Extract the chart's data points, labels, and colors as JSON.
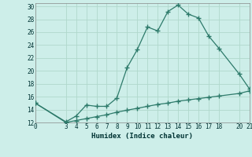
{
  "xlabel": "Humidex (Indice chaleur)",
  "background_color": "#cdeee9",
  "grid_color": "#b0d8cc",
  "line_color": "#2d7a6a",
  "xlim": [
    0,
    21
  ],
  "ylim": [
    12,
    30.5
  ],
  "yticks": [
    12,
    14,
    16,
    18,
    20,
    22,
    24,
    26,
    28,
    30
  ],
  "xticks": [
    0,
    3,
    4,
    5,
    6,
    7,
    8,
    9,
    10,
    11,
    12,
    13,
    14,
    15,
    16,
    17,
    18,
    20,
    21
  ],
  "curve1_x": [
    0,
    3,
    4,
    5,
    6,
    7,
    8,
    9,
    10,
    11,
    12,
    13,
    14,
    15,
    16,
    17,
    18,
    20,
    21
  ],
  "curve1_y": [
    15,
    12.1,
    13.0,
    14.7,
    14.5,
    14.5,
    15.8,
    20.5,
    23.3,
    26.8,
    26.2,
    29.2,
    30.2,
    28.8,
    28.2,
    25.4,
    23.5,
    19.5,
    17.2
  ],
  "curve2_x": [
    0,
    3,
    4,
    5,
    6,
    7,
    8,
    9,
    10,
    11,
    12,
    13,
    14,
    15,
    16,
    17,
    18,
    20,
    21
  ],
  "curve2_y": [
    15,
    12.0,
    12.3,
    12.6,
    12.9,
    13.2,
    13.6,
    13.9,
    14.2,
    14.5,
    14.8,
    15.0,
    15.3,
    15.5,
    15.7,
    15.9,
    16.1,
    16.5,
    16.9
  ]
}
